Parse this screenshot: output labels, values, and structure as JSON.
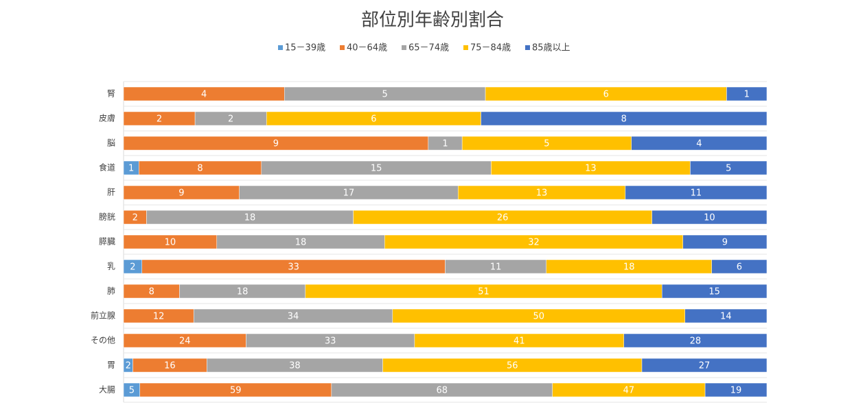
{
  "chart_data": {
    "type": "stacked_bar_100_horizontal",
    "title": "部位別年齢別割合",
    "categories": [
      "腎",
      "皮膚",
      "脳",
      "食道",
      "肝",
      "膀胱",
      "膵臓",
      "乳",
      "肺",
      "前立腺",
      "その他",
      "胃",
      "大腸"
    ],
    "series": [
      {
        "name": "15－39歳",
        "color": "#5b9bd5",
        "values": [
          null,
          null,
          null,
          1,
          null,
          null,
          null,
          2,
          null,
          null,
          null,
          2,
          5
        ]
      },
      {
        "name": "40－64歳",
        "color": "#ed7d31",
        "values": [
          4,
          2,
          9,
          8,
          9,
          2,
          10,
          33,
          8,
          12,
          24,
          16,
          59
        ]
      },
      {
        "name": "65－74歳",
        "color": "#a5a5a5",
        "values": [
          5,
          2,
          1,
          15,
          17,
          18,
          18,
          11,
          18,
          34,
          33,
          38,
          68
        ]
      },
      {
        "name": "75－84歳",
        "color": "#ffc000",
        "values": [
          6,
          6,
          5,
          13,
          13,
          26,
          32,
          18,
          51,
          50,
          41,
          56,
          47
        ]
      },
      {
        "name": "85歳以上",
        "color": "#4472c4",
        "values": [
          1,
          8,
          4,
          5,
          11,
          10,
          9,
          6,
          15,
          14,
          28,
          27,
          19
        ]
      }
    ],
    "legend": "top"
  }
}
